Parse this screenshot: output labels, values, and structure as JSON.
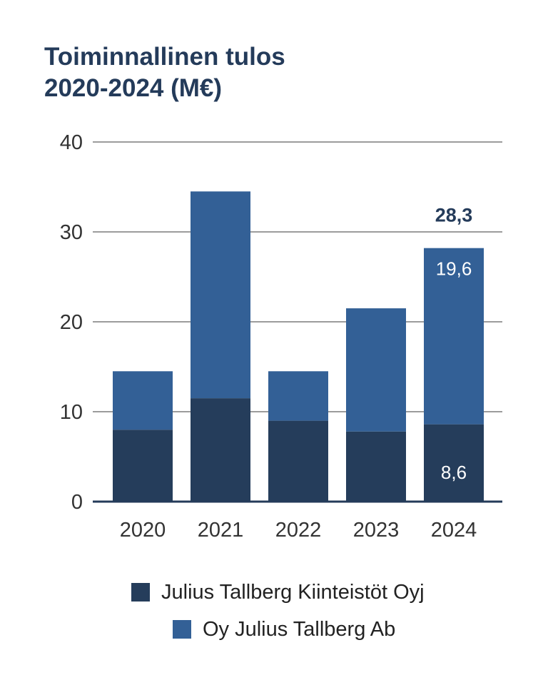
{
  "title_line1": "Toiminnallinen tulos",
  "title_line2": "2020-2024 (M€)",
  "chart_data": {
    "type": "bar",
    "stacked": true,
    "categories": [
      "2020",
      "2021",
      "2022",
      "2023",
      "2024"
    ],
    "series": [
      {
        "name": "Julius Tallberg Kiinteistöt Oyj",
        "color": "#253d5b",
        "values": [
          8.0,
          11.5,
          9.0,
          7.8,
          8.6
        ]
      },
      {
        "name": "Oy Julius Tallberg Ab",
        "color": "#336096",
        "values": [
          6.5,
          23.0,
          5.5,
          13.7,
          19.6
        ]
      }
    ],
    "y_ticks": [
      "0",
      "10",
      "20",
      "30",
      "40"
    ],
    "ylim": [
      0,
      40
    ],
    "grid": true,
    "data_labels": [
      {
        "category": "2024",
        "series": 0,
        "text": "8,6"
      },
      {
        "category": "2024",
        "series": 1,
        "text": "19,6"
      }
    ],
    "total_labels": [
      {
        "category": "2024",
        "text": "28,3"
      }
    ],
    "legend_position": "bottom"
  }
}
